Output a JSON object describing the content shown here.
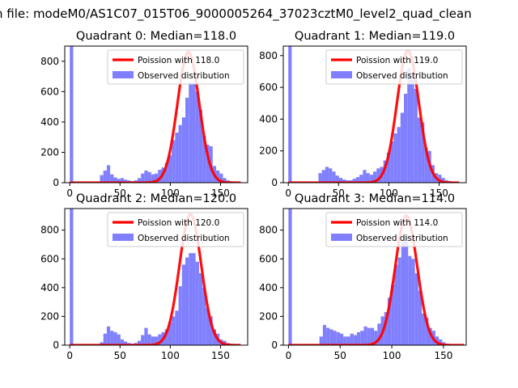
{
  "figure": {
    "suptitle": "n file: modeM0/AS1C07_015T06_9000005264_37023cztM0_level2_quad_clean"
  },
  "colors": {
    "histogram": "#8080ff",
    "poisson": "#ff0000",
    "axes": "#000000"
  },
  "chart_data": [
    {
      "type": "bar",
      "title": "Quadrant 0: Median=118.0",
      "xlim": [
        -5,
        177
      ],
      "ylim": [
        0,
        900
      ],
      "xticks": [
        0,
        50,
        100,
        150
      ],
      "yticks": [
        0,
        200,
        400,
        600,
        800
      ],
      "legend": "top-right",
      "series": [
        {
          "name": "Poission with 118.0",
          "kind": "line",
          "mean": 118.0,
          "peak": 860
        },
        {
          "name": "Observed distribution",
          "kind": "histogram",
          "bin_width": 3.4,
          "bins": [
            {
              "x": 0,
              "y": 900
            },
            {
              "x": 30,
              "y": 50
            },
            {
              "x": 33.4,
              "y": 80
            },
            {
              "x": 36.8,
              "y": 115
            },
            {
              "x": 40.2,
              "y": 55
            },
            {
              "x": 43.6,
              "y": 35
            },
            {
              "x": 47,
              "y": 25
            },
            {
              "x": 50.4,
              "y": 30
            },
            {
              "x": 53.8,
              "y": 20
            },
            {
              "x": 57.2,
              "y": 15
            },
            {
              "x": 60.6,
              "y": 10
            },
            {
              "x": 64,
              "y": 15
            },
            {
              "x": 67.4,
              "y": 30
            },
            {
              "x": 70.8,
              "y": 60
            },
            {
              "x": 74.2,
              "y": 80
            },
            {
              "x": 77.6,
              "y": 70
            },
            {
              "x": 81,
              "y": 55
            },
            {
              "x": 84.4,
              "y": 60
            },
            {
              "x": 87.8,
              "y": 85
            },
            {
              "x": 91.2,
              "y": 100
            },
            {
              "x": 94.6,
              "y": 130
            },
            {
              "x": 98,
              "y": 180
            },
            {
              "x": 101.4,
              "y": 280
            },
            {
              "x": 104.8,
              "y": 330
            },
            {
              "x": 108.2,
              "y": 380
            },
            {
              "x": 111.6,
              "y": 430
            },
            {
              "x": 115,
              "y": 560
            },
            {
              "x": 118.4,
              "y": 660
            },
            {
              "x": 121.8,
              "y": 660
            },
            {
              "x": 125.2,
              "y": 600
            },
            {
              "x": 128.6,
              "y": 480
            },
            {
              "x": 132,
              "y": 310
            },
            {
              "x": 135.4,
              "y": 250
            },
            {
              "x": 138.8,
              "y": 240
            },
            {
              "x": 142.2,
              "y": 110
            },
            {
              "x": 145.6,
              "y": 80
            },
            {
              "x": 149,
              "y": 60
            },
            {
              "x": 152.4,
              "y": 30
            },
            {
              "x": 155.8,
              "y": 15
            },
            {
              "x": 159.2,
              "y": 10
            },
            {
              "x": 162.6,
              "y": 5
            }
          ]
        }
      ]
    },
    {
      "type": "bar",
      "title": "Quadrant 1: Median=119.0",
      "xlim": [
        -5,
        177
      ],
      "ylim": [
        0,
        860
      ],
      "xticks": [
        0,
        50,
        100,
        150
      ],
      "yticks": [
        0,
        200,
        400,
        600,
        800
      ],
      "legend": "top-right",
      "series": [
        {
          "name": "Poission with 119.0",
          "kind": "line",
          "mean": 119.0,
          "peak": 830
        },
        {
          "name": "Observed distribution",
          "kind": "histogram",
          "bin_width": 3.4,
          "bins": [
            {
              "x": 0,
              "y": 860
            },
            {
              "x": 30,
              "y": 60
            },
            {
              "x": 33.4,
              "y": 80
            },
            {
              "x": 36.8,
              "y": 100
            },
            {
              "x": 40.2,
              "y": 90
            },
            {
              "x": 43.6,
              "y": 70
            },
            {
              "x": 47,
              "y": 45
            },
            {
              "x": 50.4,
              "y": 30
            },
            {
              "x": 53.8,
              "y": 20
            },
            {
              "x": 57.2,
              "y": 15
            },
            {
              "x": 60.6,
              "y": 15
            },
            {
              "x": 64,
              "y": 25
            },
            {
              "x": 67.4,
              "y": 35
            },
            {
              "x": 70.8,
              "y": 50
            },
            {
              "x": 74.2,
              "y": 80
            },
            {
              "x": 77.6,
              "y": 60
            },
            {
              "x": 81,
              "y": 50
            },
            {
              "x": 84.4,
              "y": 70
            },
            {
              "x": 87.8,
              "y": 90
            },
            {
              "x": 91.2,
              "y": 100
            },
            {
              "x": 94.6,
              "y": 140
            },
            {
              "x": 98,
              "y": 190
            },
            {
              "x": 101.4,
              "y": 260
            },
            {
              "x": 104.8,
              "y": 310
            },
            {
              "x": 108.2,
              "y": 350
            },
            {
              "x": 111.6,
              "y": 440
            },
            {
              "x": 115,
              "y": 560
            },
            {
              "x": 118.4,
              "y": 720
            },
            {
              "x": 121.8,
              "y": 660
            },
            {
              "x": 125.2,
              "y": 590
            },
            {
              "x": 128.6,
              "y": 410
            },
            {
              "x": 132,
              "y": 380
            },
            {
              "x": 135.4,
              "y": 220
            },
            {
              "x": 138.8,
              "y": 200
            },
            {
              "x": 142.2,
              "y": 110
            },
            {
              "x": 145.6,
              "y": 60
            },
            {
              "x": 149,
              "y": 50
            },
            {
              "x": 152.4,
              "y": 30
            },
            {
              "x": 155.8,
              "y": 15
            },
            {
              "x": 159.2,
              "y": 10
            },
            {
              "x": 162.6,
              "y": 5
            }
          ]
        }
      ]
    },
    {
      "type": "bar",
      "title": "Quadrant 2: Median=120.0",
      "xlim": [
        -5,
        177
      ],
      "ylim": [
        0,
        950
      ],
      "xticks": [
        0,
        50,
        100,
        150
      ],
      "yticks": [
        0,
        200,
        400,
        600,
        800
      ],
      "legend": "top-right",
      "series": [
        {
          "name": "Poission with 120.0",
          "kind": "line",
          "mean": 120.0,
          "peak": 910
        },
        {
          "name": "Observed distribution",
          "kind": "histogram",
          "bin_width": 3.4,
          "bins": [
            {
              "x": 0,
              "y": 950
            },
            {
              "x": 30,
              "y": 20
            },
            {
              "x": 33.4,
              "y": 80
            },
            {
              "x": 36.8,
              "y": 130
            },
            {
              "x": 40.2,
              "y": 100
            },
            {
              "x": 43.6,
              "y": 90
            },
            {
              "x": 47,
              "y": 75
            },
            {
              "x": 50.4,
              "y": 40
            },
            {
              "x": 53.8,
              "y": 25
            },
            {
              "x": 57.2,
              "y": 15
            },
            {
              "x": 60.6,
              "y": 10
            },
            {
              "x": 64,
              "y": 15
            },
            {
              "x": 67.4,
              "y": 30
            },
            {
              "x": 70.8,
              "y": 70
            },
            {
              "x": 74.2,
              "y": 120
            },
            {
              "x": 77.6,
              "y": 75
            },
            {
              "x": 81,
              "y": 60
            },
            {
              "x": 84.4,
              "y": 60
            },
            {
              "x": 87.8,
              "y": 75
            },
            {
              "x": 91.2,
              "y": 90
            },
            {
              "x": 94.6,
              "y": 110
            },
            {
              "x": 98,
              "y": 160
            },
            {
              "x": 101.4,
              "y": 200
            },
            {
              "x": 104.8,
              "y": 240
            },
            {
              "x": 108.2,
              "y": 410
            },
            {
              "x": 111.6,
              "y": 560
            },
            {
              "x": 115,
              "y": 610
            },
            {
              "x": 118.4,
              "y": 640
            },
            {
              "x": 121.8,
              "y": 640
            },
            {
              "x": 125.2,
              "y": 580
            },
            {
              "x": 128.6,
              "y": 500
            },
            {
              "x": 132,
              "y": 400
            },
            {
              "x": 135.4,
              "y": 260
            },
            {
              "x": 138.8,
              "y": 200
            },
            {
              "x": 142.2,
              "y": 110
            },
            {
              "x": 145.6,
              "y": 80
            },
            {
              "x": 149,
              "y": 40
            },
            {
              "x": 152.4,
              "y": 30
            },
            {
              "x": 155.8,
              "y": 15
            },
            {
              "x": 159.2,
              "y": 10
            },
            {
              "x": 162.6,
              "y": 5
            }
          ]
        }
      ]
    },
    {
      "type": "bar",
      "title": "Quadrant 3: Median=114.0",
      "xlim": [
        -5,
        172
      ],
      "ylim": [
        0,
        950
      ],
      "xticks": [
        0,
        50,
        100,
        150
      ],
      "yticks": [
        0,
        200,
        400,
        600,
        800
      ],
      "legend": "top-right",
      "series": [
        {
          "name": "Poission with 114.0",
          "kind": "line",
          "mean": 114.0,
          "peak": 900
        },
        {
          "name": "Observed distribution",
          "kind": "histogram",
          "bin_width": 3.3,
          "bins": [
            {
              "x": 0,
              "y": 950
            },
            {
              "x": 30,
              "y": 60
            },
            {
              "x": 33.3,
              "y": 140
            },
            {
              "x": 36.6,
              "y": 120
            },
            {
              "x": 39.9,
              "y": 110
            },
            {
              "x": 43.2,
              "y": 100
            },
            {
              "x": 46.5,
              "y": 90
            },
            {
              "x": 49.8,
              "y": 80
            },
            {
              "x": 53.1,
              "y": 60
            },
            {
              "x": 56.4,
              "y": 60
            },
            {
              "x": 59.7,
              "y": 80
            },
            {
              "x": 63,
              "y": 70
            },
            {
              "x": 66.3,
              "y": 90
            },
            {
              "x": 69.6,
              "y": 100
            },
            {
              "x": 72.9,
              "y": 130
            },
            {
              "x": 76.2,
              "y": 120
            },
            {
              "x": 79.5,
              "y": 120
            },
            {
              "x": 82.8,
              "y": 100
            },
            {
              "x": 86.1,
              "y": 150
            },
            {
              "x": 89.4,
              "y": 200
            },
            {
              "x": 92.7,
              "y": 230
            },
            {
              "x": 96,
              "y": 330
            },
            {
              "x": 99.3,
              "y": 420
            },
            {
              "x": 102.6,
              "y": 560
            },
            {
              "x": 105.9,
              "y": 610
            },
            {
              "x": 109.2,
              "y": 720
            },
            {
              "x": 112.5,
              "y": 760
            },
            {
              "x": 115.8,
              "y": 620
            },
            {
              "x": 119.1,
              "y": 600
            },
            {
              "x": 122.4,
              "y": 500
            },
            {
              "x": 125.7,
              "y": 380
            },
            {
              "x": 129,
              "y": 220
            },
            {
              "x": 132.3,
              "y": 190
            },
            {
              "x": 135.6,
              "y": 120
            },
            {
              "x": 138.9,
              "y": 100
            },
            {
              "x": 142.2,
              "y": 60
            },
            {
              "x": 145.5,
              "y": 40
            },
            {
              "x": 148.8,
              "y": 20
            },
            {
              "x": 152.1,
              "y": 10
            },
            {
              "x": 155.4,
              "y": 5
            }
          ]
        }
      ]
    }
  ]
}
